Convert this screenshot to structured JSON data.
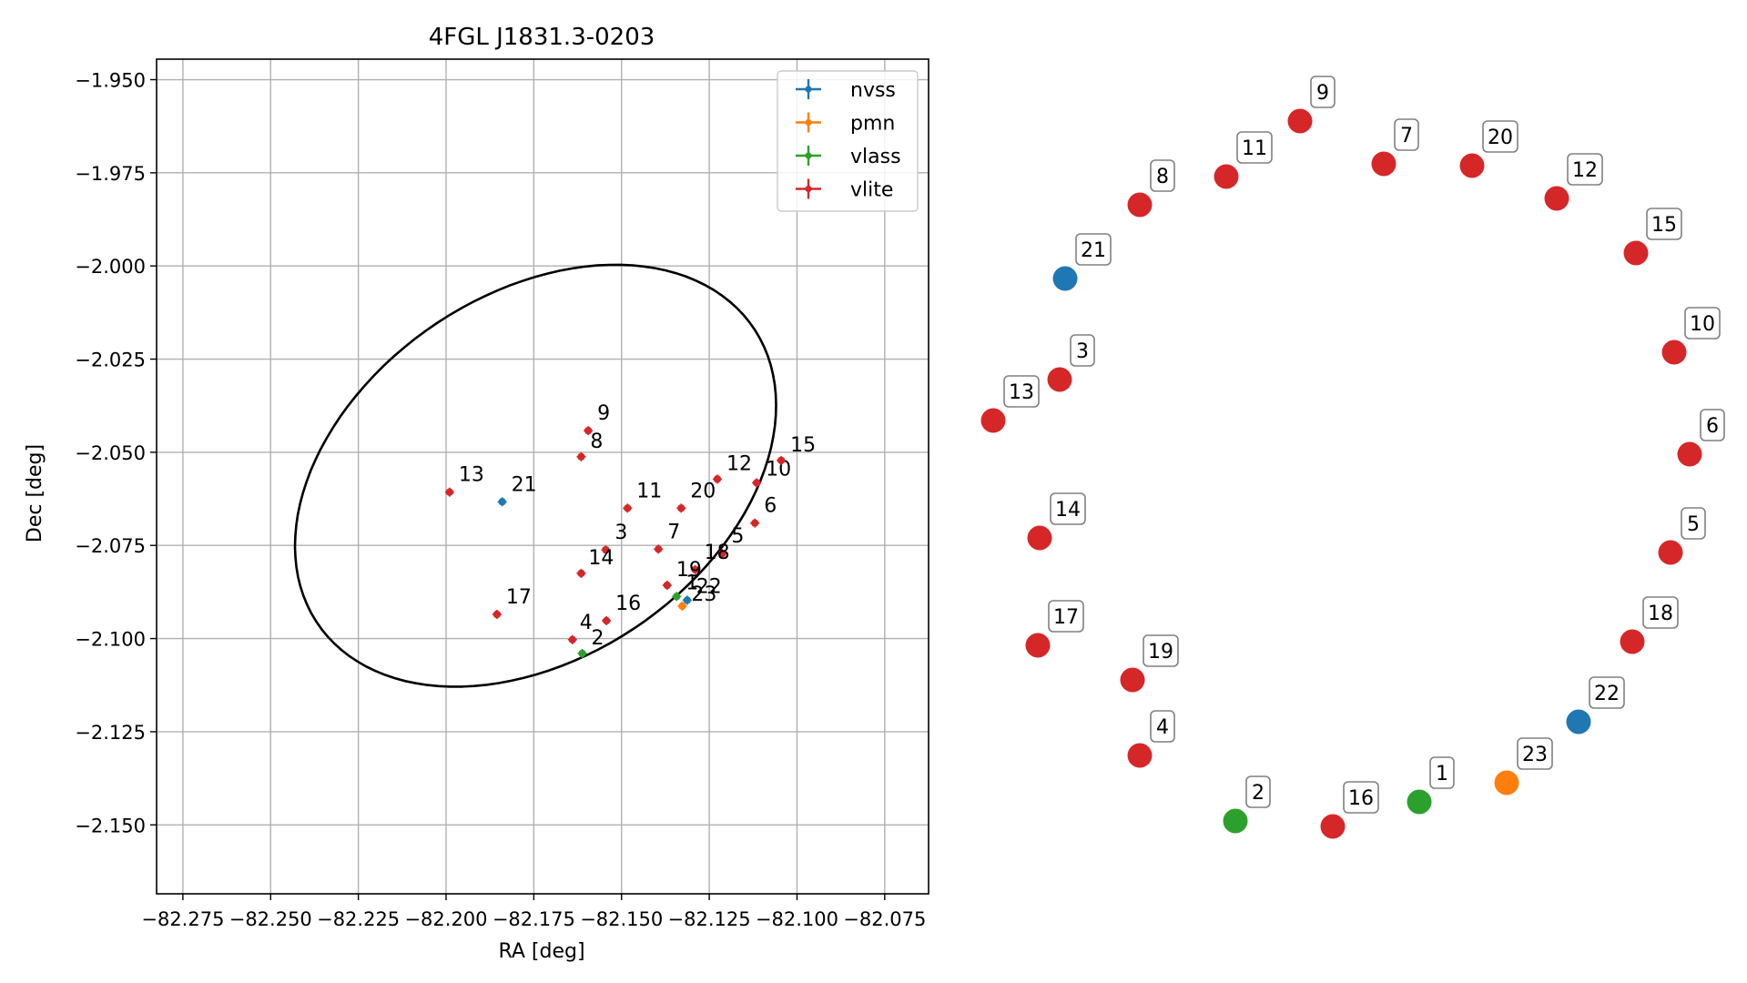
{
  "chart_data": [
    {
      "type": "scatter",
      "title": "4FGL J1831.3-0203",
      "xlabel": "RA [deg]",
      "ylabel": "Dec [deg]",
      "xlim": [
        -82.2825,
        -82.0625
      ],
      "ylim": [
        -2.1685,
        -1.9445
      ],
      "xticks": [
        -82.275,
        -82.25,
        -82.225,
        -82.2,
        -82.175,
        -82.15,
        -82.125,
        -82.1,
        -82.075
      ],
      "xtick_labels": [
        "−82.275",
        "−82.250",
        "−82.225",
        "−82.200",
        "−82.175",
        "−82.150",
        "−82.125",
        "−82.100",
        "−82.075"
      ],
      "yticks": [
        -1.95,
        -1.975,
        -2.0,
        -2.025,
        -2.05,
        -2.075,
        -2.1,
        -2.125,
        -2.15
      ],
      "ytick_labels": [
        "−1.950",
        "−1.975",
        "−2.000",
        "−2.025",
        "−2.050",
        "−2.075",
        "−2.100",
        "−2.125",
        "−2.150"
      ],
      "grid": true,
      "legend_position": "top-right",
      "series": [
        {
          "name": "nvss",
          "color": "#1f77b4"
        },
        {
          "name": "pmn",
          "color": "#ff7f0e"
        },
        {
          "name": "vlass",
          "color": "#2ca02c"
        },
        {
          "name": "vlite",
          "color": "#d62728"
        }
      ],
      "ellipse": {
        "center": [
          -82.1745,
          -2.0563
        ],
        "semi_major_deg": 0.0738,
        "semi_minor_deg": 0.0496,
        "angle_deg": 30
      },
      "points": [
        {
          "label": "1",
          "series": "vlass",
          "x": -82.1343,
          "y": -2.0887
        },
        {
          "label": "2",
          "series": "vlass",
          "x": -82.1612,
          "y": -2.104
        },
        {
          "label": "3",
          "series": "vlite",
          "x": -82.1545,
          "y": -2.0762
        },
        {
          "label": "4",
          "series": "vlite",
          "x": -82.164,
          "y": -2.1003
        },
        {
          "label": "5",
          "series": "vlite",
          "x": -82.1213,
          "y": -2.0772
        },
        {
          "label": "6",
          "series": "vlite",
          "x": -82.112,
          "y": -2.069
        },
        {
          "label": "7",
          "series": "vlite",
          "x": -82.1395,
          "y": -2.076
        },
        {
          "label": "8",
          "series": "vlite",
          "x": -82.1615,
          "y": -2.0512
        },
        {
          "label": "9",
          "series": "vlite",
          "x": -82.1595,
          "y": -2.0442
        },
        {
          "label": "10",
          "series": "vlite",
          "x": -82.1115,
          "y": -2.0582
        },
        {
          "label": "11",
          "series": "vlite",
          "x": -82.1483,
          "y": -2.065
        },
        {
          "label": "12",
          "series": "vlite",
          "x": -82.1227,
          "y": -2.0572
        },
        {
          "label": "13",
          "series": "vlite",
          "x": -82.199,
          "y": -2.0607
        },
        {
          "label": "14",
          "series": "vlite",
          "x": -82.1615,
          "y": -2.0825
        },
        {
          "label": "15",
          "series": "vlite",
          "x": -82.1045,
          "y": -2.0522
        },
        {
          "label": "16",
          "series": "vlite",
          "x": -82.1543,
          "y": -2.0952
        },
        {
          "label": "17",
          "series": "vlite",
          "x": -82.1855,
          "y": -2.0935
        },
        {
          "label": "18",
          "series": "vlite",
          "x": -82.129,
          "y": -2.0815
        },
        {
          "label": "19",
          "series": "vlite",
          "x": -82.137,
          "y": -2.0857
        },
        {
          "label": "20",
          "series": "vlite",
          "x": -82.133,
          "y": -2.065
        },
        {
          "label": "21",
          "series": "nvss",
          "x": -82.184,
          "y": -2.0633
        },
        {
          "label": "22",
          "series": "nvss",
          "x": -82.1313,
          "y": -2.0897
        },
        {
          "label": "23",
          "series": "pmn",
          "x": -82.1327,
          "y": -2.0913
        }
      ]
    },
    {
      "type": "scatter",
      "title": "",
      "points": [
        {
          "label": "9",
          "series": "vlite"
        },
        {
          "label": "7",
          "series": "vlite"
        },
        {
          "label": "20",
          "series": "vlite"
        },
        {
          "label": "11",
          "series": "vlite"
        },
        {
          "label": "12",
          "series": "vlite"
        },
        {
          "label": "8",
          "series": "vlite"
        },
        {
          "label": "15",
          "series": "vlite"
        },
        {
          "label": "21",
          "series": "nvss"
        },
        {
          "label": "10",
          "series": "vlite"
        },
        {
          "label": "3",
          "series": "vlite"
        },
        {
          "label": "13",
          "series": "vlite"
        },
        {
          "label": "6",
          "series": "vlite"
        },
        {
          "label": "14",
          "series": "vlite"
        },
        {
          "label": "5",
          "series": "vlite"
        },
        {
          "label": "17",
          "series": "vlite"
        },
        {
          "label": "18",
          "series": "vlite"
        },
        {
          "label": "19",
          "series": "vlite"
        },
        {
          "label": "22",
          "series": "nvss"
        },
        {
          "label": "4",
          "series": "vlite"
        },
        {
          "label": "23",
          "series": "pmn"
        },
        {
          "label": "1",
          "series": "vlass"
        },
        {
          "label": "2",
          "series": "vlass"
        },
        {
          "label": "16",
          "series": "vlite"
        }
      ]
    }
  ]
}
